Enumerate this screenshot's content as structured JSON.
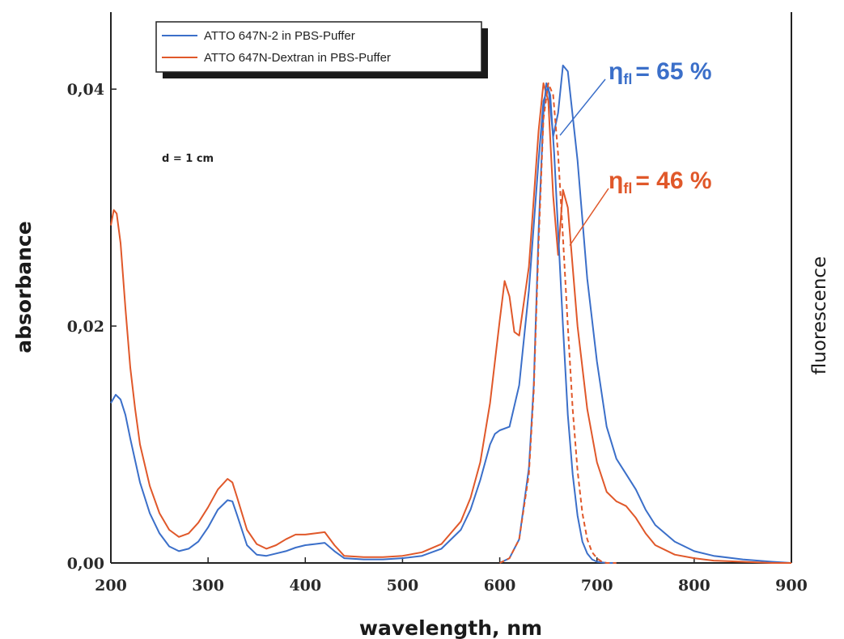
{
  "chart_data": {
    "type": "line",
    "xlabel": "wavelength, nm",
    "ylabel": "absorbance",
    "ylabel_right": "fluorescence",
    "xlim": [
      200,
      900
    ],
    "ylim": [
      0,
      0.0465
    ],
    "xticks": [
      200,
      300,
      400,
      500,
      600,
      700,
      800,
      900
    ],
    "xtick_labels": [
      "200",
      "300",
      "400",
      "500",
      "600",
      "700",
      "800",
      "900"
    ],
    "yticks": [
      0,
      0.02,
      0.04
    ],
    "ytick_labels": [
      "0,00",
      "0,02",
      "0,04"
    ],
    "grid": false,
    "legend_position": "top-left",
    "note": "d = 1 cm",
    "colors": {
      "atto_n2": "#3b6fc9",
      "atto_dextran": "#e0582a"
    },
    "legend": [
      {
        "label": "ATTO 647N-2 in PBS-Puffer",
        "color": "#3b6fc9"
      },
      {
        "label": "ATTO 647N-Dextran in PBS-Puffer",
        "color": "#e0582a"
      }
    ],
    "annotations": [
      {
        "symbol": "η",
        "subscript": "fl",
        "text": "= 65 %",
        "color": "#3b6fc9",
        "target_x": 662,
        "target_y": 0.0361
      },
      {
        "symbol": "η",
        "subscript": "fl",
        "text": "= 46 %",
        "color": "#e0582a",
        "target_x": 672,
        "target_y": 0.0268
      }
    ],
    "series": [
      {
        "name": "ATTO 647N-2 in PBS-Puffer",
        "kind": "absorbance",
        "color": "#3b6fc9",
        "x": [
          200,
          205,
          210,
          215,
          220,
          230,
          240,
          250,
          260,
          270,
          280,
          290,
          300,
          310,
          320,
          325,
          330,
          340,
          350,
          360,
          370,
          380,
          390,
          400,
          410,
          420,
          430,
          440,
          460,
          480,
          500,
          520,
          540,
          560,
          570,
          580,
          590,
          595,
          600,
          610,
          620,
          630,
          640,
          645,
          650,
          655,
          660,
          665,
          670,
          680,
          690,
          700,
          710,
          720,
          730,
          740,
          750,
          760,
          780,
          800,
          820,
          850,
          880,
          900
        ],
        "y": [
          0.0135,
          0.0142,
          0.0138,
          0.0125,
          0.0105,
          0.0068,
          0.0042,
          0.0025,
          0.0014,
          0.001,
          0.0012,
          0.0018,
          0.003,
          0.0045,
          0.0053,
          0.0052,
          0.004,
          0.0015,
          0.0007,
          0.0006,
          0.0008,
          0.001,
          0.0013,
          0.0015,
          0.0016,
          0.0017,
          0.001,
          0.0004,
          0.0003,
          0.0003,
          0.0004,
          0.0006,
          0.0012,
          0.0028,
          0.0045,
          0.007,
          0.01,
          0.0109,
          0.0112,
          0.0115,
          0.015,
          0.023,
          0.034,
          0.039,
          0.0402,
          0.036,
          0.038,
          0.042,
          0.0415,
          0.034,
          0.024,
          0.017,
          0.0115,
          0.0088,
          0.0075,
          0.0062,
          0.0045,
          0.0032,
          0.0018,
          0.001,
          0.0006,
          0.0003,
          0.0001,
          0.0
        ]
      },
      {
        "name": "ATTO 647N-Dextran in PBS-Puffer",
        "kind": "absorbance",
        "color": "#e0582a",
        "x": [
          200,
          203,
          206,
          210,
          215,
          220,
          225,
          230,
          240,
          250,
          260,
          270,
          280,
          290,
          300,
          310,
          320,
          325,
          330,
          340,
          350,
          360,
          370,
          380,
          390,
          400,
          410,
          420,
          430,
          440,
          460,
          480,
          500,
          520,
          540,
          560,
          570,
          580,
          590,
          600,
          605,
          610,
          615,
          620,
          630,
          640,
          645,
          650,
          655,
          660,
          665,
          670,
          680,
          690,
          700,
          710,
          720,
          730,
          740,
          750,
          760,
          780,
          800,
          820,
          850,
          880,
          900
        ],
        "y": [
          0.0285,
          0.0298,
          0.0295,
          0.027,
          0.0215,
          0.0165,
          0.013,
          0.01,
          0.0065,
          0.0042,
          0.0028,
          0.0022,
          0.0025,
          0.0034,
          0.0047,
          0.0062,
          0.0071,
          0.0068,
          0.0055,
          0.0028,
          0.0016,
          0.0012,
          0.0015,
          0.002,
          0.0024,
          0.0024,
          0.0025,
          0.0026,
          0.0015,
          0.0006,
          0.0005,
          0.0005,
          0.0006,
          0.0009,
          0.0016,
          0.0035,
          0.0055,
          0.0085,
          0.0135,
          0.0205,
          0.0238,
          0.0225,
          0.0195,
          0.0192,
          0.025,
          0.0365,
          0.0405,
          0.039,
          0.031,
          0.026,
          0.0315,
          0.03,
          0.02,
          0.013,
          0.0085,
          0.006,
          0.0052,
          0.0048,
          0.0038,
          0.0025,
          0.0015,
          0.0007,
          0.0004,
          0.0002,
          0.0001,
          0.0,
          0.0
        ]
      },
      {
        "name": "ATTO 647N-2 in PBS-Puffer",
        "kind": "fluorescence",
        "color": "#3b6fc9",
        "x": [
          600,
          610,
          620,
          630,
          635,
          640,
          645,
          648,
          652,
          656,
          660,
          665,
          670,
          675,
          680,
          685,
          690,
          695,
          700,
          710,
          720
        ],
        "y": [
          0.0,
          0.0004,
          0.002,
          0.008,
          0.015,
          0.028,
          0.038,
          0.0405,
          0.0395,
          0.0345,
          0.028,
          0.02,
          0.0125,
          0.0075,
          0.004,
          0.0018,
          0.0008,
          0.0003,
          0.0001,
          0.0,
          0.0
        ]
      },
      {
        "name": "ATTO 647N-Dextran in PBS-Puffer",
        "kind": "fluorescence",
        "color": "#e0582a",
        "x": [
          600,
          610,
          620,
          630,
          635,
          640,
          645,
          650,
          655,
          660,
          665,
          670,
          675,
          680,
          685,
          690,
          695,
          700,
          705,
          710,
          720
        ],
        "y": [
          0.0,
          0.0004,
          0.002,
          0.0075,
          0.0145,
          0.027,
          0.0375,
          0.0405,
          0.0395,
          0.0345,
          0.0275,
          0.02,
          0.013,
          0.0078,
          0.0042,
          0.002,
          0.0009,
          0.0004,
          0.0001,
          0.0,
          0.0
        ]
      }
    ]
  }
}
